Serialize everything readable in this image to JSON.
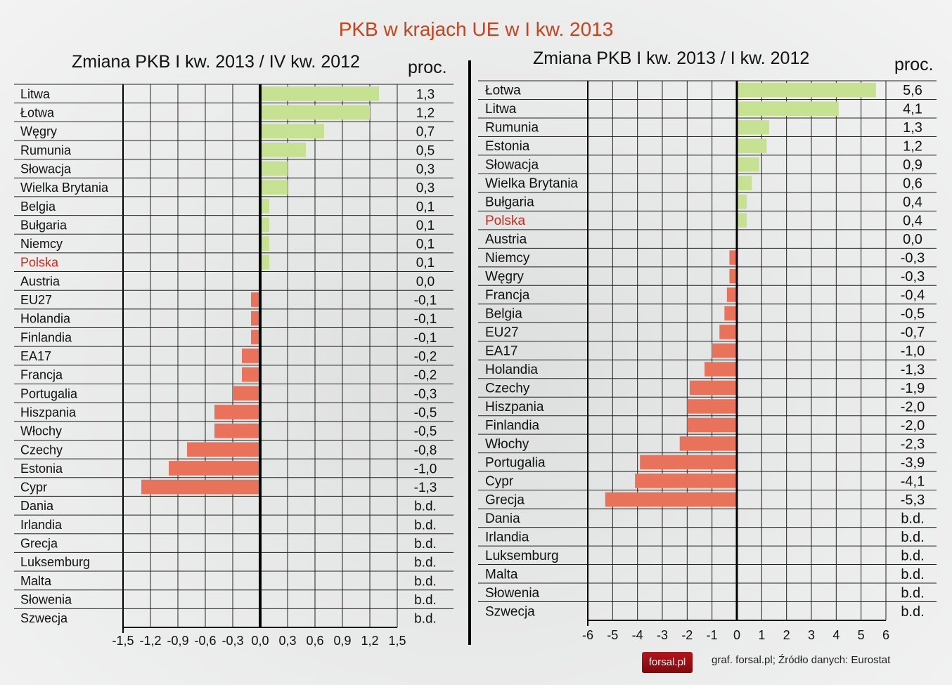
{
  "title": "PKB w krajach UE w I kw. 2013",
  "source": "graf. forsal.pl; Źródło danych: Eurostat",
  "logo": "forsal.pl",
  "colors": {
    "positive": "#c6e191",
    "negative": "#e9725b",
    "highlight": "#cc2a1a",
    "title": "#c8431c"
  },
  "chart_data": [
    {
      "type": "bar",
      "orientation": "horizontal",
      "title": "Zmiana PKB I kw. 2013 / IV kw. 2012",
      "unit_label": "proc.",
      "xlim": [
        -1.5,
        1.5
      ],
      "xticks": [
        "-1,5",
        "-1,2",
        "-0,9",
        "-0,6",
        "-0,3",
        "0,0",
        "0,3",
        "0,6",
        "0,9",
        "1,2",
        "1,5"
      ],
      "grid": true,
      "highlight": "Polska",
      "categories": [
        "Litwa",
        "Łotwa",
        "Węgry",
        "Rumunia",
        "Słowacja",
        "Wielka Brytania",
        "Belgia",
        "Bułgaria",
        "Niemcy",
        "Polska",
        "Austria",
        "EU27",
        "Holandia",
        "Finlandia",
        "EA17",
        "Francja",
        "Portugalia",
        "Hiszpania",
        "Włochy",
        "Czechy",
        "Estonia",
        "Cypr",
        "Dania",
        "Irlandia",
        "Grecja",
        "Luksemburg",
        "Malta",
        "Słowenia",
        "Szwecja"
      ],
      "values": [
        1.3,
        1.2,
        0.7,
        0.5,
        0.3,
        0.3,
        0.1,
        0.1,
        0.1,
        0.1,
        0.0,
        -0.1,
        -0.1,
        -0.1,
        -0.2,
        -0.2,
        -0.3,
        -0.5,
        -0.5,
        -0.8,
        -1.0,
        -1.3,
        null,
        null,
        null,
        null,
        null,
        null,
        null
      ],
      "labels": [
        "1,3",
        "1,2",
        "0,7",
        "0,5",
        "0,3",
        "0,3",
        "0,1",
        "0,1",
        "0,1",
        "0,1",
        "0,0",
        "-0,1",
        "-0,1",
        "-0,1",
        "-0,2",
        "-0,2",
        "-0,3",
        "-0,5",
        "-0,5",
        "-0,8",
        "-1,0",
        "-1,3",
        "b.d.",
        "b.d.",
        "b.d.",
        "b.d.",
        "b.d.",
        "b.d.",
        "b.d."
      ]
    },
    {
      "type": "bar",
      "orientation": "horizontal",
      "title": "Zmiana PKB I kw. 2013 / I kw. 2012",
      "unit_label": "proc.",
      "xlim": [
        -6,
        6
      ],
      "xticks": [
        "-6",
        "-5",
        "-4",
        "-3",
        "-2",
        "-1",
        "0",
        "1",
        "2",
        "3",
        "4",
        "5",
        "6"
      ],
      "grid": true,
      "highlight": "Polska",
      "categories": [
        "Łotwa",
        "Litwa",
        "Rumunia",
        "Estonia",
        "Słowacja",
        "Wielka Brytania",
        "Bułgaria",
        "Polska",
        "Austria",
        "Niemcy",
        "Węgry",
        "Francja",
        "Belgia",
        "EU27",
        "EA17",
        "Holandia",
        "Czechy",
        "Hiszpania",
        "Finlandia",
        "Włochy",
        "Portugalia",
        "Cypr",
        "Grecja",
        "Dania",
        "Irlandia",
        "Luksemburg",
        "Malta",
        "Słowenia",
        "Szwecja"
      ],
      "values": [
        5.6,
        4.1,
        1.3,
        1.2,
        0.9,
        0.6,
        0.4,
        0.4,
        0.0,
        -0.3,
        -0.3,
        -0.4,
        -0.5,
        -0.7,
        -1.0,
        -1.3,
        -1.9,
        -2.0,
        -2.0,
        -2.3,
        -3.9,
        -4.1,
        -5.3,
        null,
        null,
        null,
        null,
        null,
        null
      ],
      "labels": [
        "5,6",
        "4,1",
        "1,3",
        "1,2",
        "0,9",
        "0,6",
        "0,4",
        "0,4",
        "0,0",
        "-0,3",
        "-0,3",
        "-0,4",
        "-0,5",
        "-0,7",
        "-1,0",
        "-1,3",
        "-1,9",
        "-2,0",
        "-2,0",
        "-2,3",
        "-3,9",
        "-4,1",
        "-5,3",
        "b.d.",
        "b.d.",
        "b.d.",
        "b.d.",
        "b.d.",
        "b.d."
      ]
    }
  ]
}
